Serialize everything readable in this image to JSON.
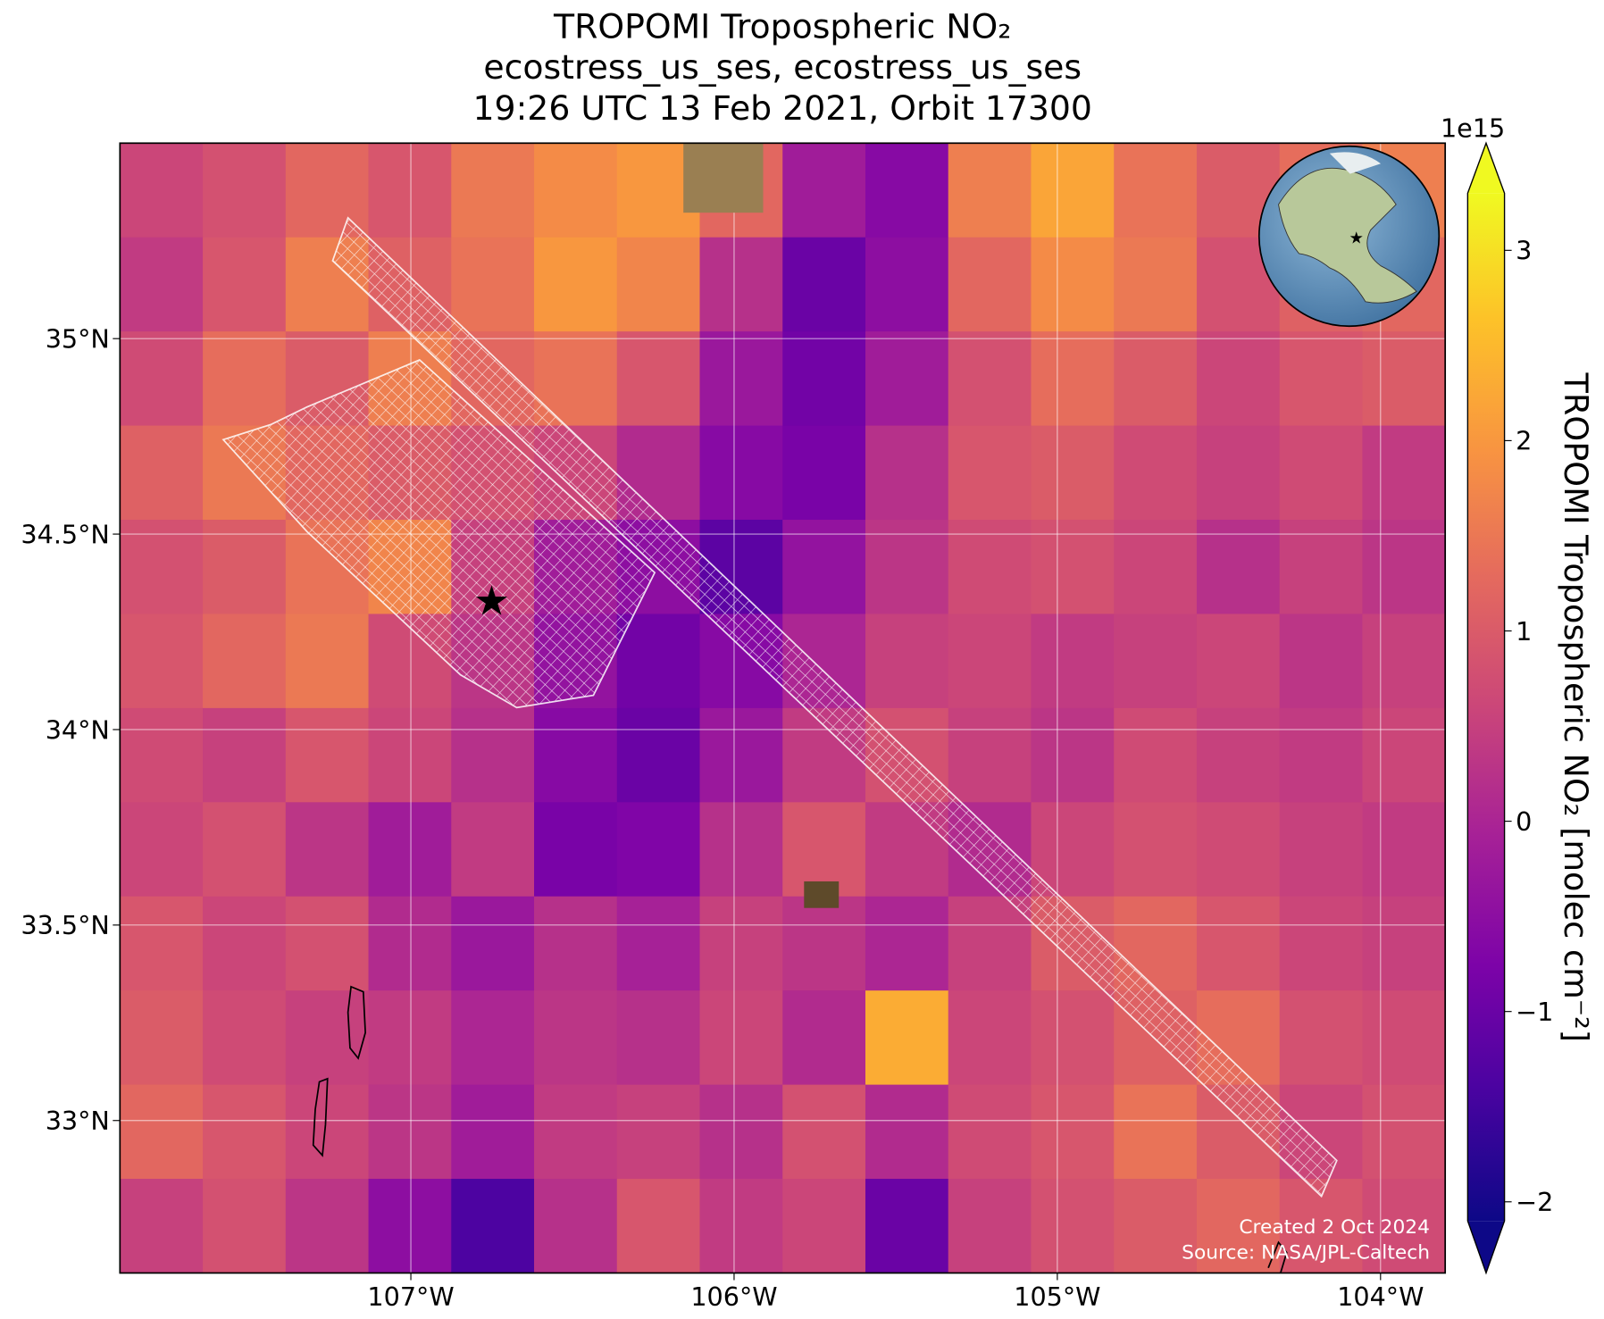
{
  "chart_data": {
    "type": "heatmap-map",
    "title": [
      "TROPOMI Tropospheric NO₂",
      "ecostress_us_ses, ecostress_us_ses",
      "19:26 UTC 13 Feb 2021, Orbit 17300"
    ],
    "xlim": [
      -107.9,
      -103.8
    ],
    "ylim": [
      32.61,
      35.5
    ],
    "xticks": [
      {
        "value": -107,
        "label": "107°W"
      },
      {
        "value": -106,
        "label": "106°W"
      },
      {
        "value": -105,
        "label": "105°W"
      },
      {
        "value": -104,
        "label": "104°W"
      }
    ],
    "yticks": [
      {
        "value": 35,
        "label": "35°N"
      },
      {
        "value": 34.5,
        "label": "34.5°N"
      },
      {
        "value": 34,
        "label": "34°N"
      },
      {
        "value": 33.5,
        "label": "33.5°N"
      },
      {
        "value": 33,
        "label": "33°N"
      }
    ],
    "grid": true,
    "colorbar": {
      "label": "TROPOMI Tropospheric NO₂ [molec cm⁻²]",
      "offset_label": "1e15",
      "lim": [
        -2.1,
        3.3
      ],
      "ticks": [
        {
          "value": -2,
          "label": "−2"
        },
        {
          "value": -1,
          "label": "−1"
        },
        0,
        1,
        2,
        3
      ],
      "extend": "both"
    },
    "values": [
      [
        0.6,
        0.8,
        1.2,
        0.9,
        1.5,
        1.8,
        2.0,
        1.2,
        -0.2,
        -0.6,
        1.6,
        2.2,
        1.4,
        1.0,
        1.3,
        1.6
      ],
      [
        0.4,
        0.9,
        1.6,
        1.1,
        1.4,
        2.0,
        1.7,
        0.2,
        -1.0,
        -0.5,
        1.2,
        1.8,
        1.5,
        0.8,
        1.1,
        1.2
      ],
      [
        0.7,
        1.3,
        1.0,
        1.6,
        1.2,
        1.4,
        0.9,
        -0.3,
        -0.9,
        -0.2,
        0.8,
        1.3,
        1.0,
        0.6,
        0.9,
        1.0
      ],
      [
        1.1,
        1.5,
        1.2,
        1.0,
        0.8,
        0.6,
        0.1,
        -0.6,
        -0.8,
        0.2,
        0.9,
        1.0,
        0.7,
        0.5,
        0.7,
        0.4
      ],
      [
        0.8,
        1.0,
        1.4,
        1.7,
        0.5,
        -0.2,
        -0.5,
        -1.2,
        -0.4,
        0.3,
        0.7,
        0.8,
        0.6,
        0.2,
        0.5,
        0.3
      ],
      [
        0.9,
        1.2,
        1.5,
        0.7,
        0.3,
        -0.4,
        -0.9,
        -0.6,
        0.0,
        0.5,
        0.6,
        0.4,
        0.5,
        0.6,
        0.3,
        0.5
      ],
      [
        0.7,
        0.5,
        0.9,
        0.6,
        0.2,
        -0.6,
        -1.0,
        -0.3,
        0.4,
        0.8,
        0.5,
        0.3,
        0.7,
        0.5,
        0.4,
        0.6
      ],
      [
        0.6,
        0.8,
        0.3,
        -0.2,
        0.4,
        -0.8,
        -0.7,
        0.2,
        0.9,
        0.4,
        0.1,
        0.6,
        0.8,
        0.7,
        0.5,
        0.4
      ],
      [
        0.9,
        0.6,
        0.8,
        0.1,
        -0.3,
        0.2,
        -0.1,
        0.5,
        0.3,
        0.0,
        0.5,
        1.0,
        1.2,
        0.9,
        0.6,
        0.5
      ],
      [
        1.0,
        0.7,
        0.5,
        0.4,
        0.0,
        0.3,
        0.2,
        0.6,
        0.1,
        2.3,
        0.6,
        0.8,
        1.1,
        1.3,
        0.8,
        0.7
      ],
      [
        1.2,
        0.9,
        0.6,
        0.3,
        -0.2,
        0.4,
        0.5,
        0.2,
        0.8,
        0.1,
        0.7,
        0.9,
        1.4,
        1.0,
        0.6,
        0.8
      ],
      [
        0.5,
        0.8,
        0.3,
        -0.5,
        -1.4,
        0.2,
        0.9,
        0.4,
        0.6,
        -1.0,
        0.5,
        0.8,
        1.0,
        1.2,
        0.9,
        0.7
      ]
    ],
    "site": {
      "lon": -106.75,
      "lat": 34.33
    },
    "annotations": [
      "Created 2 Oct 2024",
      "Source: NASA/JPL-Caltech"
    ]
  }
}
